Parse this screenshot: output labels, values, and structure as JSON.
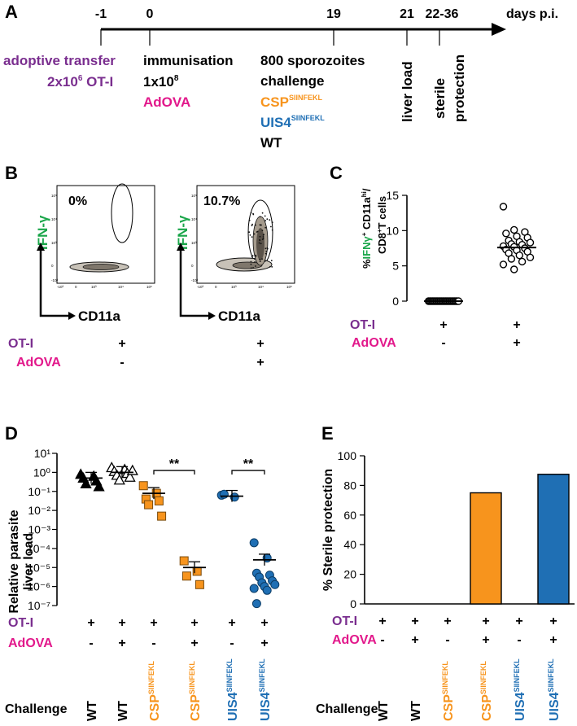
{
  "colors": {
    "purple": "#7a2e8f",
    "magenta": "#e2188b",
    "orange": "#f7941d",
    "blue": "#1f6fb4",
    "green": "#1aa64a",
    "black": "#000000"
  },
  "panelA": {
    "label": "A",
    "axis_label": "days p.i.",
    "ticks": [
      "-1",
      "0",
      "19",
      "21",
      "22-36"
    ],
    "adoptive_transfer": "adoptive transfer",
    "ot1_dose": "2x10",
    "ot1_dose_exp": "6",
    "ot1_name": "OT-I",
    "immunisation": "immunisation",
    "dose": "1x10",
    "dose_exp": "8",
    "adova": "AdOVA",
    "challenge_line1": "800 sporozoites",
    "challenge_line2": "challenge",
    "csp": "CSP",
    "uis4": "UIS4",
    "sup": "SIINFEKL",
    "wt": "WT",
    "liver_load": "liver load",
    "sterile1": "sterile",
    "sterile2": "protection"
  },
  "panelB": {
    "label": "B",
    "pct_left": "0%",
    "pct_right": "10.7%",
    "y_label": "IFN-γ",
    "x_label": "CD11a",
    "flow_ticks": [
      "10⁵",
      "10⁴",
      "10³",
      "0",
      "-10³"
    ],
    "x_ticks": [
      "-10³",
      "0",
      "10³",
      "10⁴",
      "10⁵"
    ],
    "ot1": "OT-I",
    "adova": "AdOVA",
    "ot1_values": [
      "+",
      "+"
    ],
    "adova_values": [
      "-",
      "+"
    ]
  },
  "panelD": {
    "label": "D",
    "ot1": "OT-I",
    "adova": "AdOVA",
    "challenge": "Challenge",
    "sig": "**"
  },
  "panelE": {
    "label": "E",
    "ot1": "OT-I",
    "adova": "AdOVA",
    "challenge": "Challenge"
  },
  "chart_data": [
    {
      "id": "C",
      "type": "scatter",
      "title": "C",
      "ylabel": "%IFNγ+ CD11a hi / CD8+T cells",
      "ylim": [
        0,
        15
      ],
      "yticks": [
        0,
        5,
        10,
        15
      ],
      "groups": [
        {
          "ot1": "+",
          "adova": "-",
          "values": [
            0,
            0,
            0,
            0,
            0,
            0,
            0,
            0,
            0,
            0,
            0,
            0,
            0,
            0,
            0,
            0,
            0,
            0,
            0,
            0,
            0,
            0,
            0,
            0
          ],
          "mean": 0
        },
        {
          "ot1": "+",
          "adova": "+",
          "values": [
            13.4,
            10.1,
            9.8,
            9.6,
            9.2,
            9.0,
            8.6,
            8.4,
            8.3,
            8.1,
            8.0,
            7.8,
            7.7,
            7.5,
            7.3,
            7.2,
            7.0,
            6.8,
            6.5,
            6.2,
            6.0,
            5.6,
            5.2,
            4.5
          ],
          "mean": 7.6
        }
      ],
      "row_labels": {
        "ot1": "OT-I",
        "adova": "AdOVA"
      }
    },
    {
      "id": "D",
      "type": "scatter",
      "title": "D",
      "ylabel": "Relative parasite liver load",
      "yscale": "log",
      "ylim": [
        1e-07,
        10
      ],
      "ytick_labels": [
        "10¹",
        "10⁰",
        "10⁻¹",
        "10⁻²",
        "10⁻³",
        "10⁻⁴",
        "10⁻⁵",
        "10⁻⁶",
        "10⁻⁷"
      ],
      "groups": [
        {
          "challenge": "WT",
          "ot1": "+",
          "adova": "-",
          "color": "#000000",
          "marker": "triangle",
          "filled": true,
          "log10_values": [
            -0.1,
            -0.2,
            -0.3,
            -0.45,
            -0.6,
            -0.75
          ],
          "log10_mean": -0.3
        },
        {
          "challenge": "WT",
          "ot1": "+",
          "adova": "+",
          "color": "#000000",
          "marker": "triangle",
          "filled": false,
          "log10_values": [
            0.25,
            0.15,
            0.05,
            -0.05,
            -0.15,
            -0.25,
            -0.4,
            0.1
          ],
          "log10_mean": 0.0
        },
        {
          "challenge": "CSP",
          "sup": "SIINFEKL",
          "ot1": "+",
          "adova": "-",
          "color": "#f7941d",
          "marker": "square",
          "filled": true,
          "log10_values": [
            -0.7,
            -1.1,
            -1.4,
            -1.5,
            -1.7,
            -2.3
          ],
          "log10_mean": -1.1
        },
        {
          "challenge": "CSP",
          "sup": "SIINFEKL",
          "ot1": "+",
          "adova": "+",
          "color": "#f7941d",
          "marker": "square",
          "filled": true,
          "log10_values": [
            -4.65,
            -5.2,
            -5.45,
            -5.9
          ],
          "log10_mean": -5.0
        },
        {
          "challenge": "UIS4",
          "sup": "SIINFEKL",
          "ot1": "+",
          "adova": "-",
          "color": "#1f6fb4",
          "marker": "circle",
          "filled": true,
          "log10_values": [
            -1.2,
            -1.3,
            -1.15
          ],
          "log10_mean": -1.25
        },
        {
          "challenge": "UIS4",
          "sup": "SIINFEKL",
          "ot1": "+",
          "adova": "+",
          "color": "#1f6fb4",
          "marker": "circle",
          "filled": true,
          "log10_values": [
            -3.7,
            -4.5,
            -5.3,
            -5.4,
            -5.5,
            -5.7,
            -5.8,
            -5.9,
            -6.0,
            -6.1,
            -6.2,
            -6.9
          ],
          "log10_mean": -4.6
        }
      ],
      "significance": [
        {
          "between": [
            2,
            3
          ],
          "label": "**"
        },
        {
          "between": [
            4,
            5
          ],
          "label": "**"
        }
      ]
    },
    {
      "id": "E",
      "type": "bar",
      "title": "E",
      "ylabel": "% Sterile protection",
      "ylim": [
        0,
        100
      ],
      "yticks": [
        0,
        20,
        40,
        60,
        80,
        100
      ],
      "categories": [
        "WT",
        "WT",
        "CSP",
        "CSP",
        "UIS4",
        "UIS4"
      ],
      "category_sup": [
        "",
        "",
        "SIINFEKL",
        "SIINFEKL",
        "SIINFEKL",
        "SIINFEKL"
      ],
      "category_colors": [
        "#000000",
        "#000000",
        "#f7941d",
        "#f7941d",
        "#1f6fb4",
        "#1f6fb4"
      ],
      "ot1": [
        "+",
        "+",
        "+",
        "+",
        "+",
        "+"
      ],
      "adova": [
        "-",
        "+",
        "-",
        "+",
        "-",
        "+"
      ],
      "values": [
        0,
        0,
        0,
        75,
        0,
        87.5
      ]
    }
  ]
}
